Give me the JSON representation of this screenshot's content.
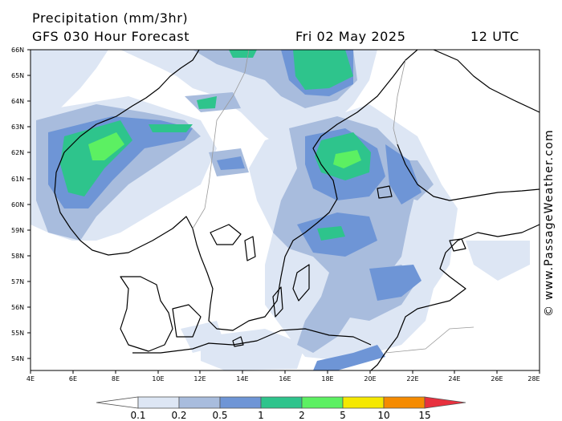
{
  "header": {
    "title": "Precipitation (mm/3hr)",
    "model": "GFS 030 Hour Forecast",
    "date": "Fri 02 May 2025",
    "utc": "12 UTC"
  },
  "credit": "© www.PassageWeather.com",
  "map": {
    "lat_labels": [
      "66N",
      "65N",
      "64N",
      "63N",
      "62N",
      "61N",
      "60N",
      "59N",
      "58N",
      "57N",
      "56N",
      "55N",
      "54N"
    ],
    "lon_labels": [
      "4E",
      "6E",
      "8E",
      "10E",
      "12E",
      "14E",
      "16E",
      "18E",
      "20E",
      "22E",
      "24E",
      "26E",
      "28E"
    ],
    "lat_range": [
      66,
      53.6
    ],
    "lon_range": [
      4,
      28
    ]
  },
  "legend": {
    "thresholds": [
      "0.1",
      "0.2",
      "0.5",
      "1",
      "2",
      "5",
      "10",
      "15"
    ],
    "colors": [
      "#ffffff",
      "#dde6f4",
      "#a8bcdd",
      "#6e95d6",
      "#2ec48c",
      "#5cf062",
      "#f5e800",
      "#f58b00",
      "#e8303e"
    ]
  }
}
